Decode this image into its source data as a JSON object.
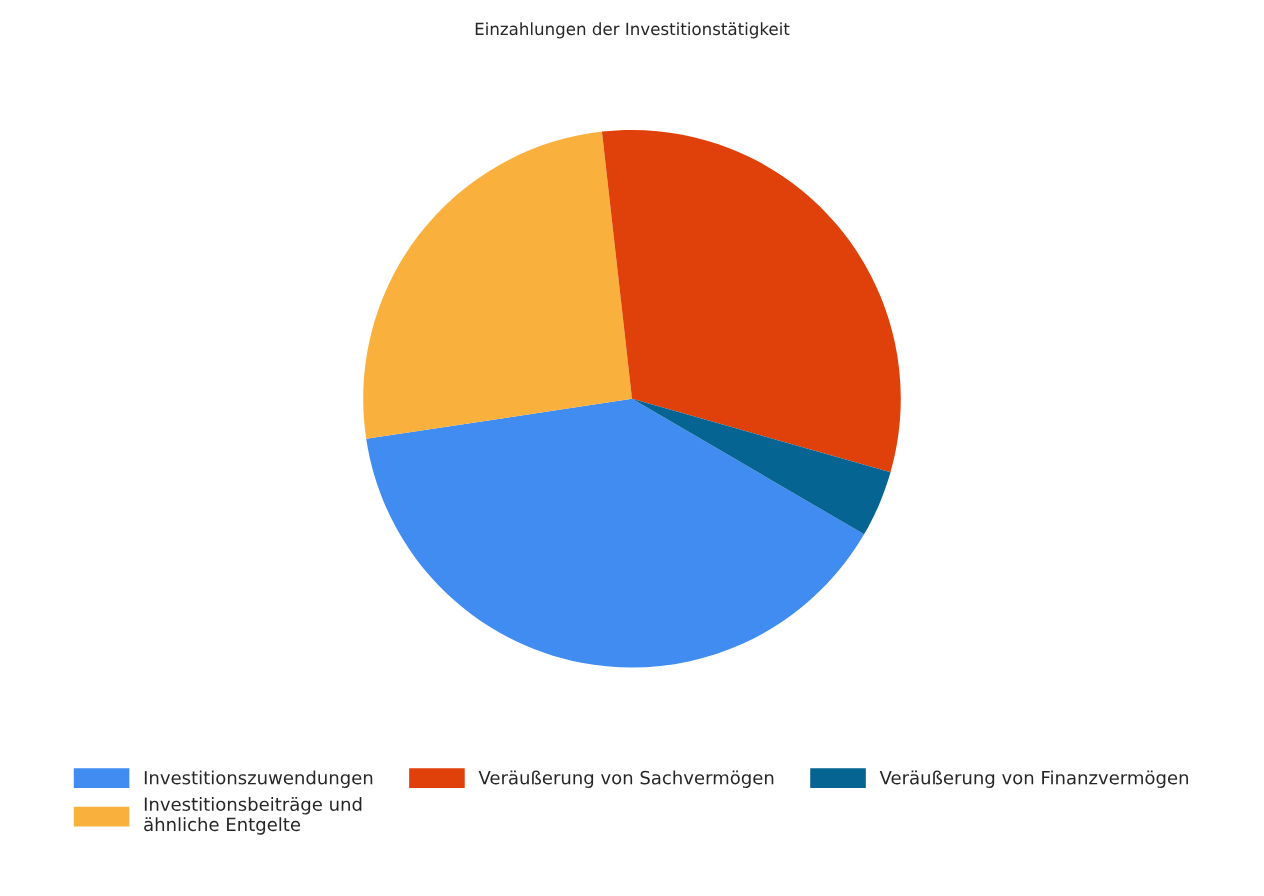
{
  "chart_data": {
    "type": "pie",
    "title": "Einzahlungen der Investitionstätigkeit",
    "categories": [
      "Investitionszuwendungen",
      "Veräußerung von Sachvermögen",
      "Veräußerung von Finanzvermögen",
      "Investitionsbeiträge und\nähnliche Entgelte"
    ],
    "values": [
      39.2,
      31.2,
      4.0,
      25.6
    ],
    "colors": [
      "#418cf0",
      "#e0400a",
      "#056492",
      "#fab03c"
    ],
    "legend": "bottom"
  }
}
